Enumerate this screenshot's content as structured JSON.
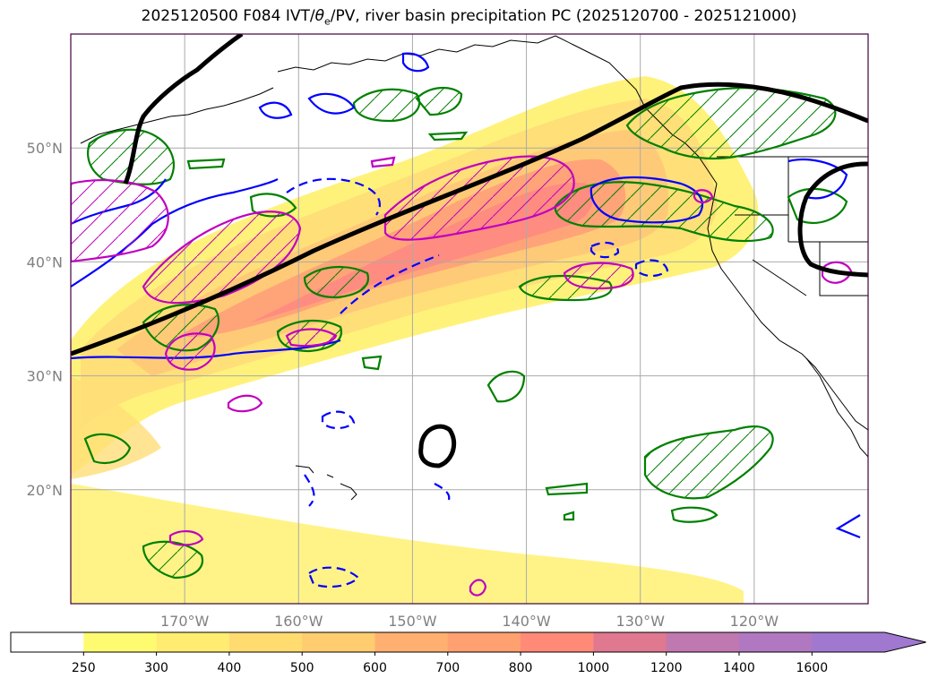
{
  "title": {
    "prefix": "2025120500 F084 IVT/",
    "theta": "θ",
    "sub": "e",
    "suffix": "/PV, river basin precipitation PC (2025120700 - 2025121000)"
  },
  "map": {
    "projection": "PlateCarree",
    "lon_range": [
      -180,
      -110
    ],
    "lat_range": [
      10,
      60
    ],
    "lat_ticks": [
      {
        "value": 50,
        "label": "50°N"
      },
      {
        "value": 40,
        "label": "40°N"
      },
      {
        "value": 30,
        "label": "30°N"
      },
      {
        "value": 20,
        "label": "20°N"
      }
    ],
    "lon_ticks": [
      {
        "value": -170,
        "label": "170°W"
      },
      {
        "value": -160,
        "label": "160°W"
      },
      {
        "value": -150,
        "label": "150°W"
      },
      {
        "value": -140,
        "label": "140°W"
      },
      {
        "value": -130,
        "label": "130°W"
      },
      {
        "value": -120,
        "label": "120°W"
      }
    ],
    "grid": true,
    "colors": {
      "theta_e_contour": "#0000ff",
      "pv_contour": "#c000c0",
      "precip_contour": "#008000",
      "jet_line": "#000000",
      "coastline": "#000000",
      "gridline": "#aaaaaa"
    }
  },
  "colorbar": {
    "levels": [
      "250",
      "300",
      "400",
      "500",
      "600",
      "700",
      "800",
      "1000",
      "1200",
      "1400",
      "1600"
    ],
    "colors": [
      "#ffffff",
      "#fffb70",
      "#ffec70",
      "#ffdb70",
      "#ffcc70",
      "#ffb070",
      "#ffa070",
      "#ff8a78",
      "#e07890",
      "#c078b0",
      "#b078c0",
      "#a078d0"
    ],
    "extend": "max"
  }
}
